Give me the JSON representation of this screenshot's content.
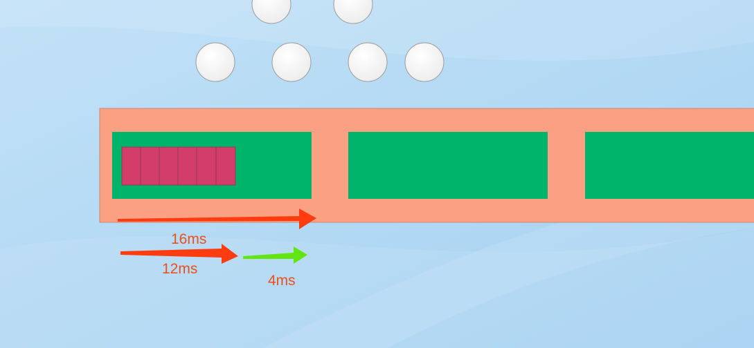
{
  "colors": {
    "background": "#b2d8f4",
    "frame_strip": "#fba083",
    "frame_block": "#00b46b",
    "task_block": "#d23d6a",
    "circle_fill": "#f5f5f5",
    "arrow_red": "#ff3c0f",
    "arrow_green": "#62e510",
    "label_text": "#e9501f"
  },
  "circles": {
    "top_row_count": 2,
    "second_row_count": 4
  },
  "frames": {
    "visible_count": 3,
    "first_frame_task_slices": 6
  },
  "labels": {
    "frame_time": "16ms",
    "work_time": "12ms",
    "remaining_time": "4ms"
  }
}
